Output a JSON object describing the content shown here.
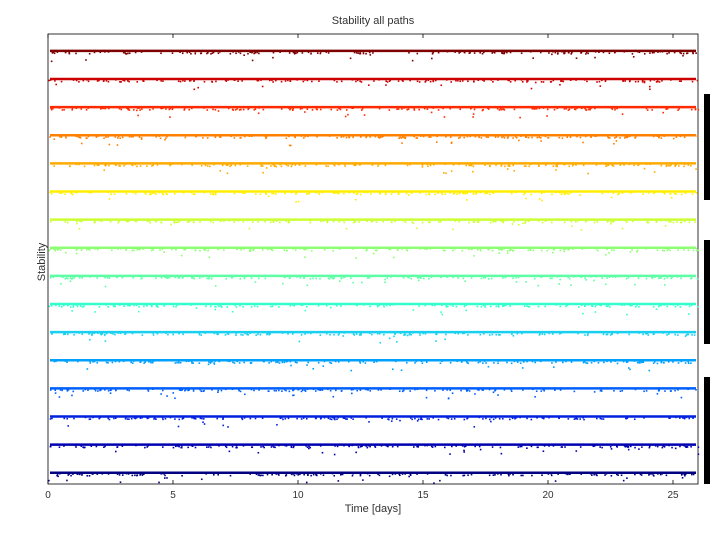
{
  "chart_data": {
    "type": "scatter",
    "title": "Stability all paths",
    "xlabel": "Time [days]",
    "ylabel": "Stability",
    "xlim": [
      0,
      26
    ],
    "x_ticks": [
      0,
      5,
      10,
      15,
      20,
      25
    ],
    "ylim": [
      0,
      16
    ],
    "y_ticks_shown": false,
    "grid": false,
    "legend": "none",
    "colormap": "jet",
    "series": [
      {
        "index": 1,
        "baseline": 15.4,
        "color": "#7f0000"
      },
      {
        "index": 2,
        "baseline": 14.4,
        "color": "#cc0000"
      },
      {
        "index": 3,
        "baseline": 13.4,
        "color": "#ff2a00"
      },
      {
        "index": 4,
        "baseline": 12.4,
        "color": "#ff7f00"
      },
      {
        "index": 5,
        "baseline": 11.4,
        "color": "#ffaa00"
      },
      {
        "index": 6,
        "baseline": 10.4,
        "color": "#ffee00"
      },
      {
        "index": 7,
        "baseline": 9.4,
        "color": "#ccff33"
      },
      {
        "index": 8,
        "baseline": 8.4,
        "color": "#8cff73"
      },
      {
        "index": 9,
        "baseline": 7.4,
        "color": "#5cffa3"
      },
      {
        "index": 10,
        "baseline": 6.4,
        "color": "#33ffcc"
      },
      {
        "index": 11,
        "baseline": 5.4,
        "color": "#1ad0f0"
      },
      {
        "index": 12,
        "baseline": 4.4,
        "color": "#00a0ff"
      },
      {
        "index": 13,
        "baseline": 3.4,
        "color": "#0060ff"
      },
      {
        "index": 14,
        "baseline": 2.4,
        "color": "#0020e0"
      },
      {
        "index": 15,
        "baseline": 1.4,
        "color": "#0000b0"
      },
      {
        "index": 16,
        "baseline": 0.4,
        "color": "#000080"
      }
    ]
  }
}
